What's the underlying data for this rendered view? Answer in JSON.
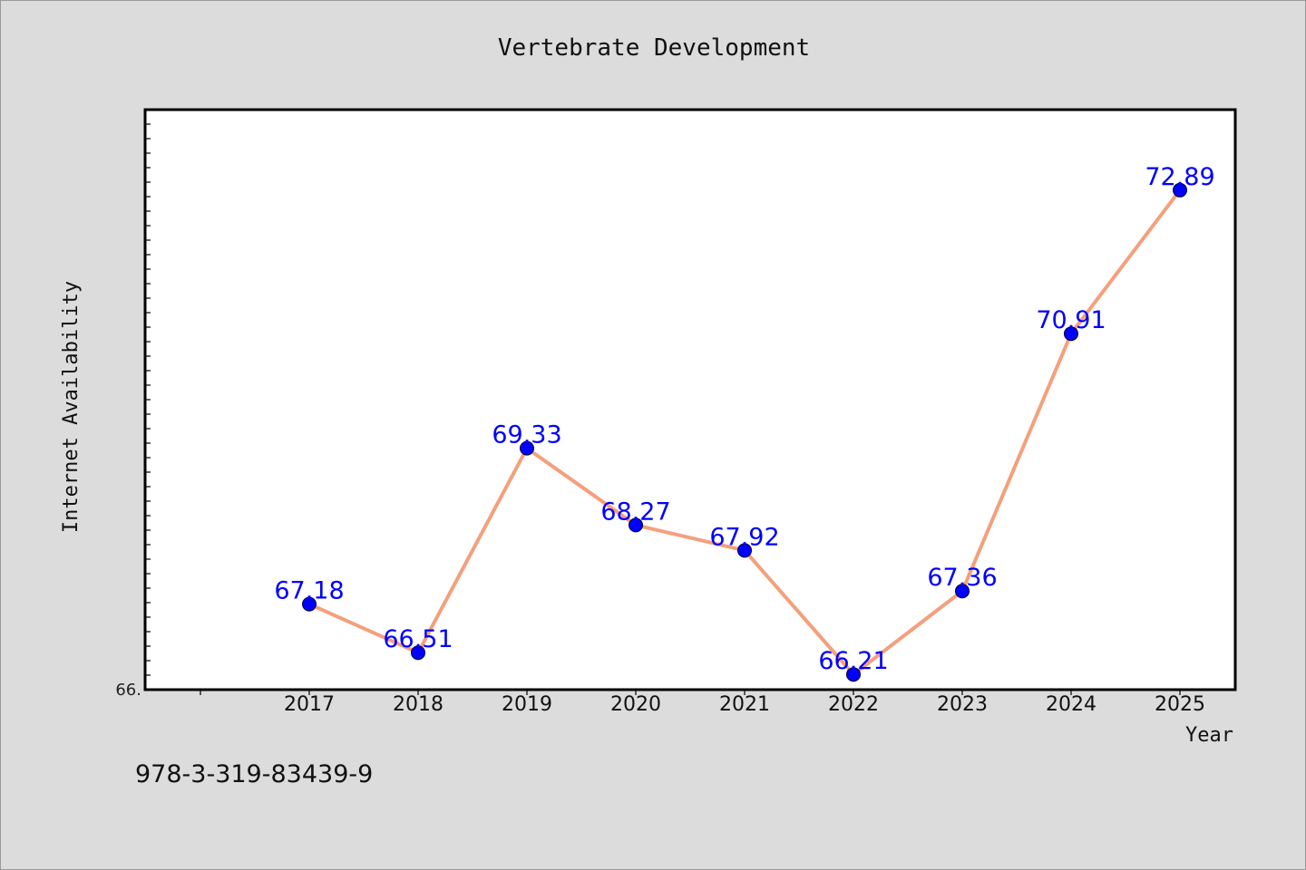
{
  "chart_data": {
    "type": "line",
    "title": "Vertebrate Development",
    "xlabel": "Year",
    "ylabel": "Internet Availability",
    "categories": [
      "2017",
      "2018",
      "2019",
      "2020",
      "2021",
      "2022",
      "2023",
      "2024",
      "2025"
    ],
    "series": [
      {
        "values": [
          67.18,
          66.51,
          69.33,
          68.27,
          67.92,
          66.21,
          67.36,
          70.91,
          72.89
        ],
        "labels": [
          "67.18",
          "66.51",
          "69.33",
          "68.27",
          "67.92",
          "66.21",
          "67.36",
          "70.91",
          "72.89"
        ]
      }
    ],
    "ylim": [
      66.0,
      74.0
    ],
    "y_tick_label_visible": "66.",
    "grid": false,
    "legend": "none",
    "colors": {
      "line": "#f4a07c",
      "marker": "#0000ff",
      "data_label": "#0000ff",
      "background": "#dcdcdc",
      "plot_area": "#ffffff"
    }
  },
  "footer": {
    "isbn": "978-3-319-83439-9"
  }
}
